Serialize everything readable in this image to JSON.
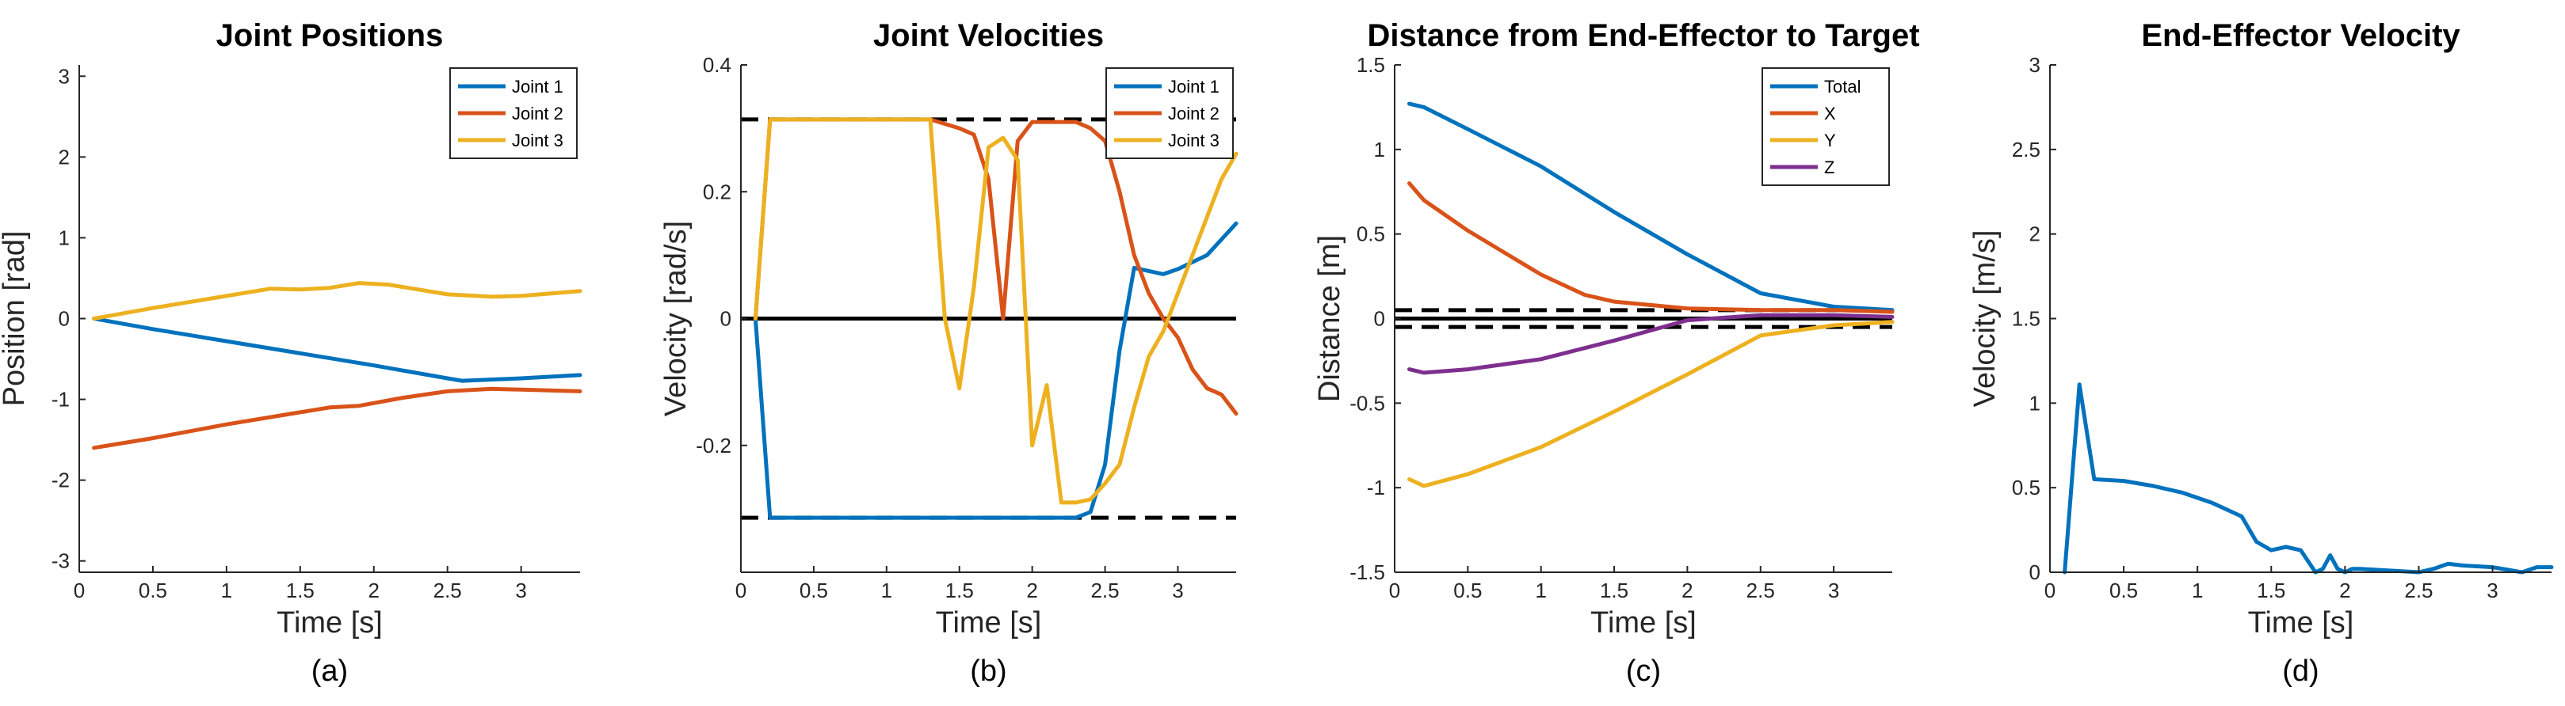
{
  "figure": {
    "colors": {
      "joint1": "#0072BD",
      "joint2": "#D95319",
      "joint3": "#EDB120",
      "z": "#7E2F8E",
      "axis": "#262626",
      "limit": "#000000"
    }
  },
  "chart_data": [
    {
      "type": "line",
      "title": "Joint Positions",
      "xlabel": "Time [s]",
      "ylabel": "Position [rad]",
      "panel_label": "(a)",
      "xlim": [
        0,
        3.4
      ],
      "ylim": [
        -3.14,
        3.14
      ],
      "xticks": [
        0,
        0.5,
        1,
        1.5,
        2,
        2.5,
        3
      ],
      "xtick_labels": [
        "0",
        "0.5",
        "1",
        "1.5",
        "2",
        "2.5",
        "3"
      ],
      "yticks": [
        -3,
        -2,
        -1,
        0,
        1,
        2,
        3
      ],
      "ytick_labels": [
        "-3",
        "-2",
        "-1",
        "0",
        "1",
        "2",
        "3"
      ],
      "legend": "top-right",
      "series": [
        {
          "name": "Joint 1",
          "color": "#0072BD",
          "x": [
            0.1,
            0.5,
            1.0,
            1.5,
            2.0,
            2.5,
            2.6,
            3.0,
            3.4
          ],
          "y": [
            0.0,
            -0.13,
            -0.28,
            -0.43,
            -0.58,
            -0.74,
            -0.77,
            -0.74,
            -0.7
          ]
        },
        {
          "name": "Joint 2",
          "color": "#D95319",
          "x": [
            0.1,
            0.5,
            1.0,
            1.5,
            1.7,
            1.9,
            2.2,
            2.5,
            2.8,
            3.0,
            3.4
          ],
          "y": [
            -1.6,
            -1.48,
            -1.31,
            -1.16,
            -1.1,
            -1.08,
            -0.98,
            -0.9,
            -0.87,
            -0.88,
            -0.9
          ]
        },
        {
          "name": "Joint 3",
          "color": "#EDB120",
          "x": [
            0.1,
            0.5,
            1.0,
            1.3,
            1.5,
            1.7,
            1.9,
            2.1,
            2.5,
            2.8,
            3.0,
            3.4
          ],
          "y": [
            0.0,
            0.13,
            0.28,
            0.37,
            0.36,
            0.38,
            0.44,
            0.42,
            0.3,
            0.27,
            0.28,
            0.34
          ]
        }
      ],
      "hlines": []
    },
    {
      "type": "line",
      "title": "Joint Velocities",
      "xlabel": "Time [s]",
      "ylabel": "Velocity [rad/s]",
      "panel_label": "(b)",
      "xlim": [
        0,
        3.4
      ],
      "ylim": [
        -0.4,
        0.4
      ],
      "xticks": [
        0,
        0.5,
        1,
        1.5,
        2,
        2.5,
        3
      ],
      "xtick_labels": [
        "0",
        "0.5",
        "1",
        "1.5",
        "2",
        "2.5",
        "3"
      ],
      "yticks": [
        -0.2,
        0,
        0.2,
        0.4
      ],
      "ytick_labels": [
        "-0.2",
        "0",
        "0.2",
        "0.4"
      ],
      "legend": "top-right",
      "series": [
        {
          "name": "Joint 1",
          "color": "#0072BD",
          "x": [
            0.1,
            0.2,
            2.3,
            2.4,
            2.5,
            2.6,
            2.7,
            2.8,
            2.9,
            3.0,
            3.2,
            3.4
          ],
          "y": [
            0.0,
            -0.314,
            -0.314,
            -0.305,
            -0.23,
            -0.05,
            0.08,
            0.075,
            0.07,
            0.078,
            0.1,
            0.15
          ]
        },
        {
          "name": "Joint 2",
          "color": "#D95319",
          "x": [
            0.1,
            0.2,
            1.3,
            1.5,
            1.6,
            1.7,
            1.8,
            1.9,
            2.0,
            2.1,
            2.2,
            2.3,
            2.4,
            2.5,
            2.6,
            2.7,
            2.8,
            2.9,
            3.0,
            3.1,
            3.2,
            3.3,
            3.4
          ],
          "y": [
            0.0,
            0.314,
            0.314,
            0.3,
            0.29,
            0.22,
            0.0,
            0.28,
            0.31,
            0.31,
            0.31,
            0.31,
            0.3,
            0.28,
            0.2,
            0.1,
            0.04,
            0.0,
            -0.03,
            -0.08,
            -0.11,
            -0.12,
            -0.15
          ]
        },
        {
          "name": "Joint 3",
          "color": "#EDB120",
          "x": [
            0.1,
            0.2,
            1.3,
            1.4,
            1.5,
            1.6,
            1.7,
            1.8,
            1.9,
            2.0,
            2.1,
            2.2,
            2.3,
            2.4,
            2.5,
            2.6,
            2.7,
            2.8,
            2.9,
            3.0,
            3.1,
            3.2,
            3.3,
            3.4
          ],
          "y": [
            0.0,
            0.314,
            0.314,
            0.0,
            -0.11,
            0.05,
            0.27,
            0.285,
            0.25,
            -0.2,
            -0.105,
            -0.29,
            -0.29,
            -0.285,
            -0.26,
            -0.23,
            -0.14,
            -0.06,
            -0.02,
            0.04,
            0.1,
            0.16,
            0.22,
            0.26
          ]
        }
      ],
      "hlines": [
        {
          "y": 0.314,
          "style": "dashed"
        },
        {
          "y": -0.314,
          "style": "dashed"
        },
        {
          "y": 0,
          "style": "solid"
        }
      ]
    },
    {
      "type": "line",
      "title": "Distance from End-Effector to Target",
      "xlabel": "Time [s]",
      "ylabel": "Distance [m]",
      "panel_label": "(c)",
      "xlim": [
        0,
        3.4
      ],
      "ylim": [
        -1.5,
        1.5
      ],
      "xticks": [
        0,
        0.5,
        1,
        1.5,
        2,
        2.5,
        3
      ],
      "xtick_labels": [
        "0",
        "0.5",
        "1",
        "1.5",
        "2",
        "2.5",
        "3"
      ],
      "yticks": [
        -1.5,
        -1,
        -0.5,
        0,
        0.5,
        1,
        1.5
      ],
      "ytick_labels": [
        "-1.5",
        "-1",
        "-0.5",
        "0",
        "0.5",
        "1",
        "1.5"
      ],
      "legend": "top-right",
      "series": [
        {
          "name": "Total",
          "color": "#0072BD",
          "x": [
            0.1,
            0.2,
            0.5,
            1.0,
            1.5,
            2.0,
            2.5,
            3.0,
            3.4
          ],
          "y": [
            1.27,
            1.25,
            1.12,
            0.9,
            0.63,
            0.38,
            0.15,
            0.07,
            0.05
          ]
        },
        {
          "name": "X",
          "color": "#D95319",
          "x": [
            0.1,
            0.2,
            0.5,
            1.0,
            1.3,
            1.5,
            2.0,
            2.5,
            3.0,
            3.4
          ],
          "y": [
            0.8,
            0.7,
            0.52,
            0.26,
            0.14,
            0.1,
            0.06,
            0.05,
            0.05,
            0.04
          ]
        },
        {
          "name": "Y",
          "color": "#EDB120",
          "x": [
            0.1,
            0.2,
            0.5,
            1.0,
            1.5,
            2.0,
            2.5,
            3.0,
            3.4
          ],
          "y": [
            -0.95,
            -0.99,
            -0.92,
            -0.76,
            -0.55,
            -0.33,
            -0.1,
            -0.04,
            -0.02
          ]
        },
        {
          "name": "Z",
          "color": "#7E2F8E",
          "x": [
            0.1,
            0.2,
            0.5,
            1.0,
            1.5,
            2.0,
            2.5,
            3.0,
            3.4
          ],
          "y": [
            -0.3,
            -0.32,
            -0.3,
            -0.24,
            -0.13,
            -0.01,
            0.02,
            0.02,
            0.01
          ]
        }
      ],
      "hlines": [
        {
          "y": 0.05,
          "style": "dashed"
        },
        {
          "y": -0.05,
          "style": "dashed"
        },
        {
          "y": 0,
          "style": "solid"
        }
      ]
    },
    {
      "type": "line",
      "title": "End-Effector Velocity",
      "xlabel": "Time [s]",
      "ylabel": "Velocity [m/s]",
      "panel_label": "(d)",
      "xlim": [
        0,
        3.4
      ],
      "ylim": [
        0,
        3
      ],
      "xticks": [
        0,
        0.5,
        1,
        1.5,
        2,
        2.5,
        3
      ],
      "xtick_labels": [
        "0",
        "0.5",
        "1",
        "1.5",
        "2",
        "2.5",
        "3"
      ],
      "yticks": [
        0,
        0.5,
        1,
        1.5,
        2,
        2.5,
        3
      ],
      "ytick_labels": [
        "0",
        "0.5",
        "1",
        "1.5",
        "2",
        "2.5",
        "3"
      ],
      "legend": "none",
      "series": [
        {
          "name": "End-Effector",
          "color": "#0072BD",
          "x": [
            0.1,
            0.2,
            0.3,
            0.5,
            0.7,
            0.9,
            1.1,
            1.3,
            1.4,
            1.5,
            1.6,
            1.7,
            1.8,
            1.85,
            1.9,
            1.95,
            2.0,
            2.05,
            2.1,
            2.5,
            2.6,
            2.7,
            2.8,
            3.0,
            3.2,
            3.3,
            3.4
          ],
          "y": [
            0.0,
            1.11,
            0.55,
            0.54,
            0.51,
            0.47,
            0.41,
            0.33,
            0.18,
            0.13,
            0.15,
            0.13,
            0.0,
            0.02,
            0.1,
            0.02,
            0.0,
            0.02,
            0.02,
            0.0,
            0.02,
            0.05,
            0.04,
            0.03,
            0.0,
            0.03,
            0.03
          ]
        }
      ],
      "hlines": []
    }
  ]
}
